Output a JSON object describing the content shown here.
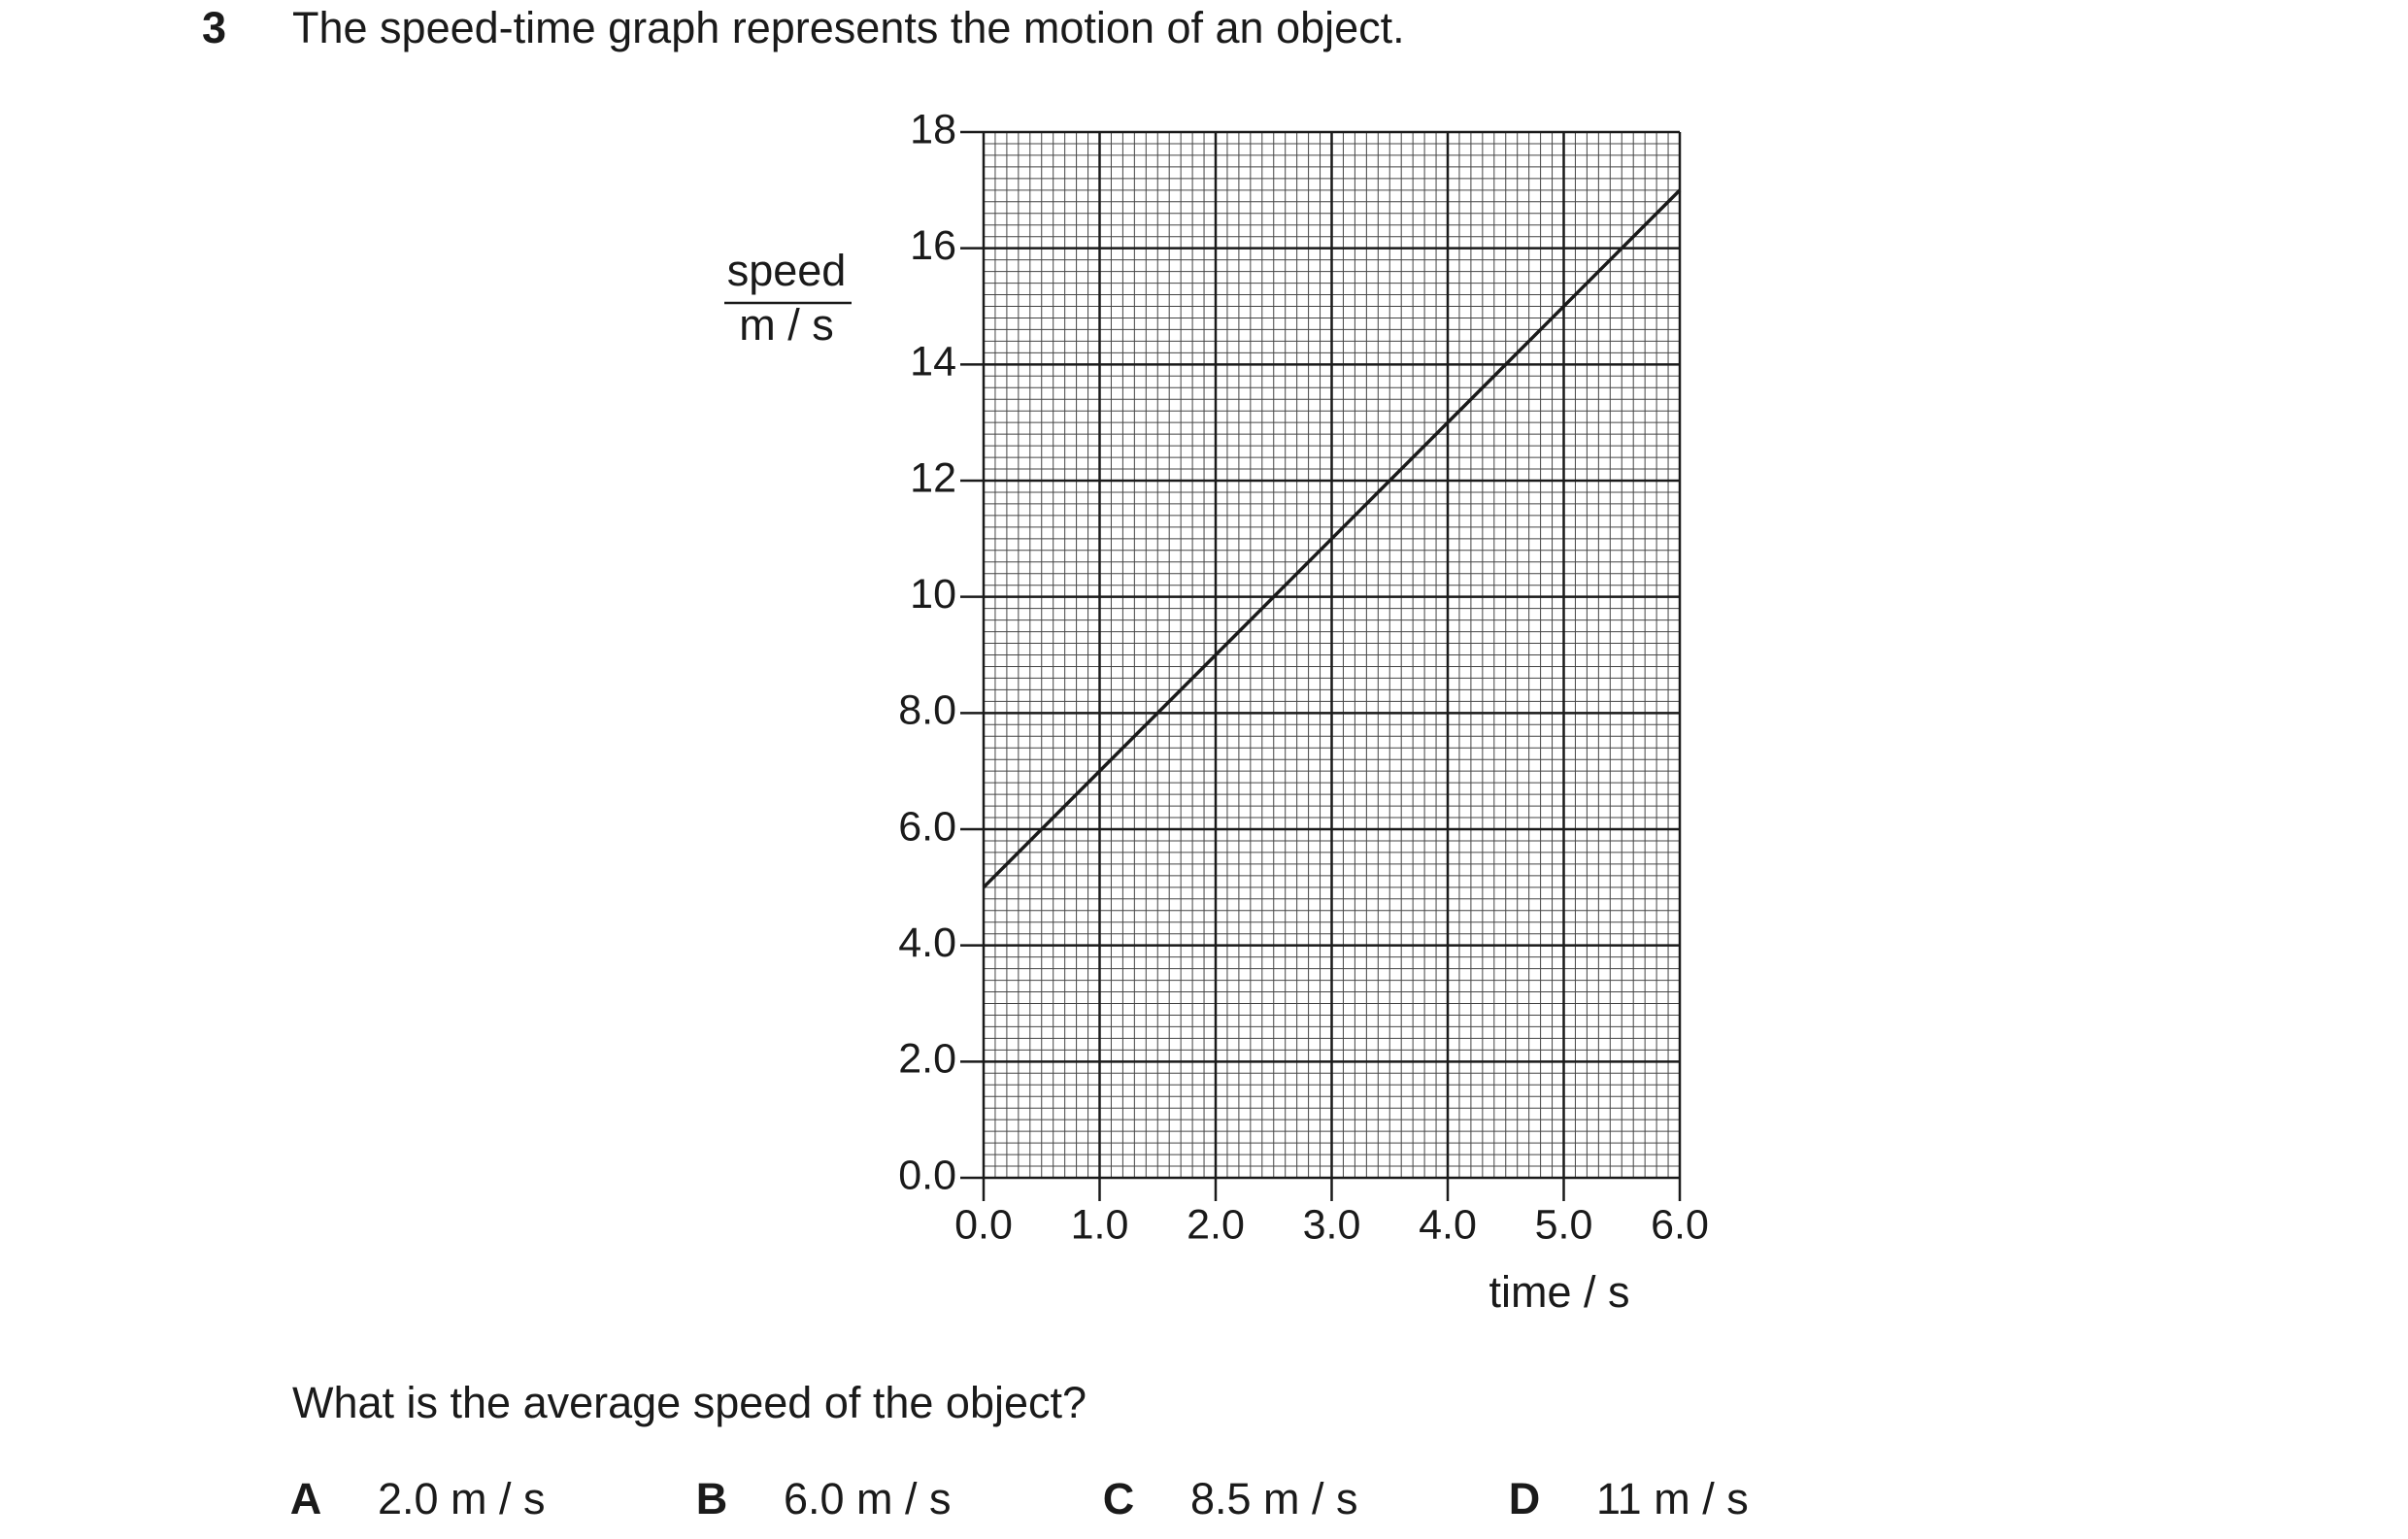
{
  "number": "3",
  "question": "The speed-time graph represents the motion of an object.",
  "chart_data": {
    "type": "line",
    "ylabel": "speed",
    "yunit": "m / s",
    "xlabel": "time / s",
    "x": [
      0,
      6
    ],
    "values": [
      5,
      17
    ],
    "color": "#1a1a1a",
    "xlim": [
      0,
      6
    ],
    "ylim": [
      0,
      18
    ],
    "xticks": [
      {
        "value": 0,
        "label": "0.0"
      },
      {
        "value": 1,
        "label": "1.0"
      },
      {
        "value": 2,
        "label": "2.0"
      },
      {
        "value": 3,
        "label": "3.0"
      },
      {
        "value": 4,
        "label": "4.0"
      },
      {
        "value": 5,
        "label": "5.0"
      },
      {
        "value": 6,
        "label": "6.0"
      }
    ],
    "yticks": [
      {
        "value": 0,
        "label": "0.0"
      },
      {
        "value": 2,
        "label": "2.0"
      },
      {
        "value": 4,
        "label": "4.0"
      },
      {
        "value": 6,
        "label": "6.0"
      },
      {
        "value": 8,
        "label": "8.0"
      },
      10,
      12,
      14,
      16,
      18
    ],
    "grid": true
  },
  "prompt": "What is the average speed of the object?",
  "options": [
    {
      "letter": "A",
      "text": "2.0 m / s"
    },
    {
      "letter": "B",
      "text": "6.0 m / s"
    },
    {
      "letter": "C",
      "text": "8.5 m / s"
    },
    {
      "letter": "D",
      "text": "11 m / s"
    }
  ]
}
